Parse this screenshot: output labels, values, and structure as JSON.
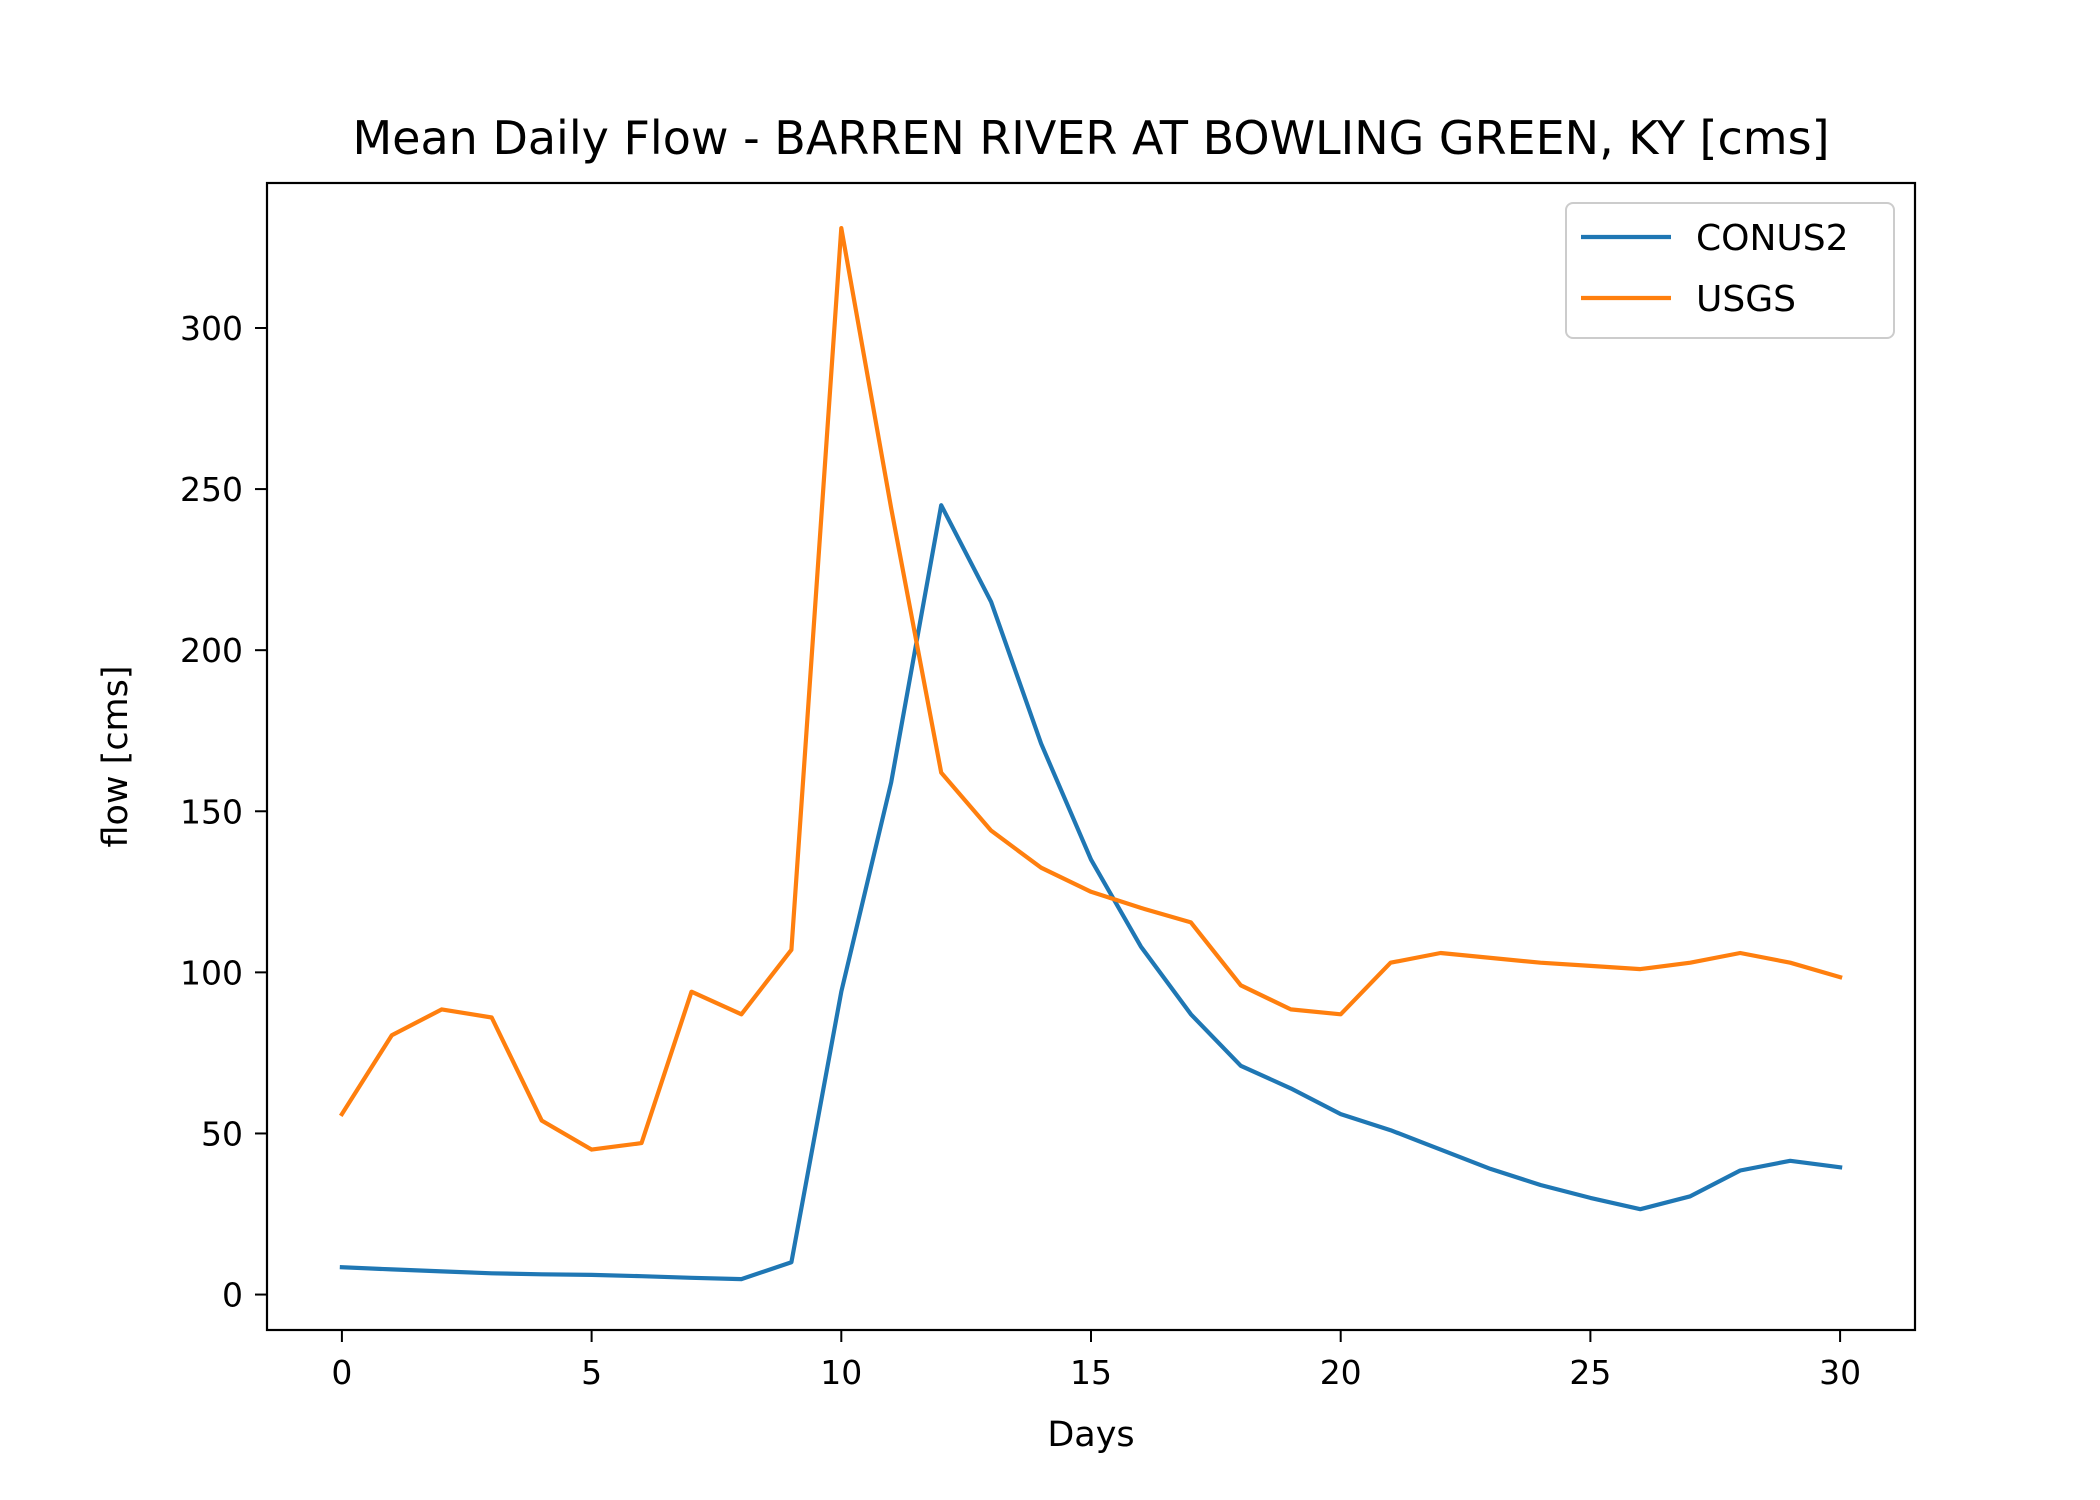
{
  "chart_data": {
    "type": "line",
    "title": "Mean Daily Flow - BARREN RIVER AT BOWLING GREEN, KY [cms]",
    "xlabel": "Days",
    "ylabel": "flow [cms]",
    "xlim": [
      -1.5,
      31.5
    ],
    "ylim": [
      -11,
      345
    ],
    "xticks": [
      0,
      5,
      10,
      15,
      20,
      25,
      30
    ],
    "yticks": [
      0,
      50,
      100,
      150,
      200,
      250,
      300
    ],
    "grid": false,
    "legend_position": "upper right",
    "x": [
      0,
      1,
      2,
      3,
      4,
      5,
      6,
      7,
      8,
      9,
      10,
      11,
      12,
      13,
      14,
      15,
      16,
      17,
      18,
      19,
      20,
      21,
      22,
      23,
      24,
      25,
      26,
      27,
      28,
      29,
      30
    ],
    "series": [
      {
        "name": "CONUS2",
        "color": "#1f77b4",
        "values": [
          8.5,
          7.8,
          7.2,
          6.6,
          6.3,
          6.1,
          5.7,
          5.2,
          4.8,
          10,
          94,
          159,
          245,
          215,
          171,
          135,
          108,
          87,
          71,
          64,
          56,
          51,
          45,
          39,
          34,
          30,
          26.5,
          30.5,
          38.5,
          41.5,
          39.5
        ]
      },
      {
        "name": "USGS",
        "color": "#ff7f0e",
        "values": [
          56,
          80.5,
          88.5,
          86,
          54,
          45,
          47,
          94,
          87,
          107,
          331,
          244,
          162,
          144,
          132.5,
          125,
          120,
          115.5,
          96,
          88.5,
          87,
          103,
          106,
          104.5,
          103,
          102,
          101,
          103,
          106,
          103,
          98.5
        ]
      }
    ]
  }
}
